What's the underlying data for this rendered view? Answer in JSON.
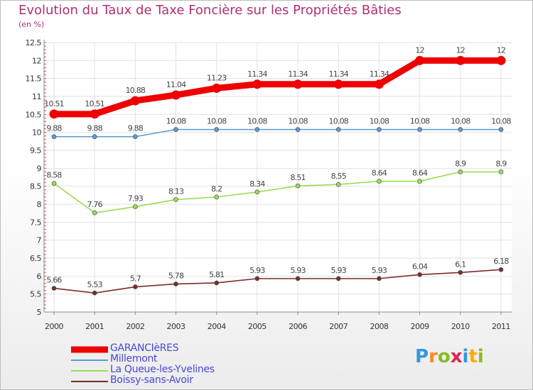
{
  "chart_data": {
    "type": "line",
    "title": "Evolution du Taux de Taxe Foncière sur les Propriétés Bâties",
    "ylabel": "(en %)",
    "xlabel": "",
    "categories": [
      "2000",
      "2001",
      "2002",
      "2003",
      "2004",
      "2005",
      "2006",
      "2007",
      "2008",
      "2009",
      "2010",
      "2011"
    ],
    "ylim": [
      5,
      12.5
    ],
    "yticks": [
      "5",
      "5.5",
      "6",
      "6.5",
      "7",
      "7.5",
      "8",
      "8.5",
      "9",
      "9.5",
      "10",
      "10.5",
      "11",
      "11.5",
      "12",
      "12.5"
    ],
    "grid": true,
    "legend_position": "bottom-left",
    "series": [
      {
        "name": "GARANCIèRES",
        "color": "#ee0000",
        "values": [
          10.51,
          10.51,
          10.88,
          11.04,
          11.23,
          11.34,
          11.34,
          11.34,
          11.34,
          12,
          12,
          12
        ],
        "labels": [
          "10.51",
          "10.51",
          "10.88",
          "11.04",
          "11.23",
          "11.34",
          "11.34",
          "11.34",
          "11.34",
          "12",
          "12",
          "12"
        ]
      },
      {
        "name": "Millemont",
        "color": "#5b9bd0",
        "values": [
          9.88,
          9.88,
          9.88,
          10.08,
          10.08,
          10.08,
          10.08,
          10.08,
          10.08,
          10.08,
          10.08,
          10.08
        ],
        "labels": [
          "9.88",
          "9.88",
          "9.88",
          "10.08",
          "10.08",
          "10.08",
          "10.08",
          "10.08",
          "10.08",
          "10.08",
          "10.08",
          "10.08"
        ]
      },
      {
        "name": "La Queue-les-Yvelines",
        "color": "#99dd55",
        "values": [
          8.58,
          7.76,
          7.93,
          8.13,
          8.2,
          8.34,
          8.51,
          8.55,
          8.64,
          8.64,
          8.9,
          8.9
        ],
        "labels": [
          "8.58",
          "7.76",
          "7.93",
          "8.13",
          "8.2",
          "8.34",
          "8.51",
          "8.55",
          "8.64",
          "8.64",
          "8.9",
          "8.9"
        ]
      },
      {
        "name": "Boissy-sans-Avoir",
        "color": "#7a2c2c",
        "values": [
          5.66,
          5.53,
          5.7,
          5.78,
          5.81,
          5.93,
          5.93,
          5.93,
          5.93,
          6.04,
          6.1,
          6.18
        ],
        "labels": [
          "5.66",
          "5.53",
          "5.7",
          "5.78",
          "5.81",
          "5.93",
          "5.93",
          "5.93",
          "5.93",
          "6.04",
          "6.1",
          "6.18"
        ]
      }
    ]
  },
  "logo": {
    "letters": [
      "P",
      "r",
      "o",
      "x",
      "i",
      "t",
      "i"
    ],
    "colors": [
      "#3399dd",
      "#ff8822",
      "#88bb22",
      "#dd2255",
      "#3399dd",
      "#ffaa00",
      "#88bb22"
    ]
  }
}
